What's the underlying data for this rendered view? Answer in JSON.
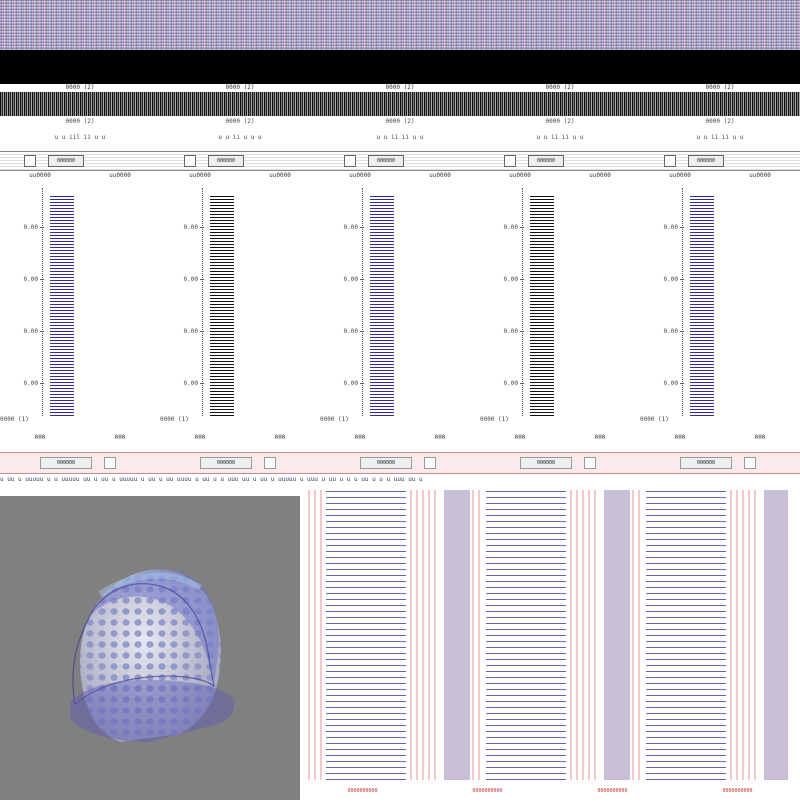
{
  "header": {
    "column_titles": [
      "0000 (2)",
      "0000 (2)",
      "0000 (2)",
      "0000 (2)",
      "0000 (2)"
    ],
    "column_subtitles": [
      "0000 (2)",
      "0000 (2)",
      "0000 (2)",
      "0000 (2)",
      "0000 (2)"
    ],
    "column_labels": [
      "u u iil ii u u",
      "u u ii u u u",
      "u u ii ii u u",
      "u u ii ii u u",
      "u u ii ii u u"
    ]
  },
  "toolbar": {
    "buttons": [
      "000000",
      "000000",
      "000000",
      "000000",
      "000000"
    ]
  },
  "series_labels": [
    "uu0000",
    "uu0000",
    "uu0000",
    "uu0000",
    "uu0000",
    "uu0000",
    "uu0000",
    "uu0000",
    "uu0000",
    "uu0000"
  ],
  "chart_data": {
    "type": "bar",
    "panels": [
      {
        "ticks": [
          "0.00",
          "0.00",
          "0.00",
          "0.00"
        ],
        "value": 1.0,
        "color": "#2a2a9e",
        "xlabel": "0000 (1)"
      },
      {
        "ticks": [
          "0.00",
          "0.00",
          "0.00",
          "0.00"
        ],
        "value": 1.0,
        "color": "#111111",
        "xlabel": "0000 (1)"
      },
      {
        "ticks": [
          "0.00",
          "0.00",
          "0.00",
          "0.00"
        ],
        "value": 1.0,
        "color": "#2a2a9e",
        "xlabel": "0000 (1)"
      },
      {
        "ticks": [
          "0.00",
          "0.00",
          "0.00",
          "0.00"
        ],
        "value": 1.0,
        "color": "#111111",
        "xlabel": "0000 (1)"
      },
      {
        "ticks": [
          "0.00",
          "0.00",
          "0.00",
          "0.00"
        ],
        "value": 1.0,
        "color": "#2a2a9e",
        "xlabel": "0000 (1)"
      }
    ]
  },
  "bottom_tabs": [
    "000",
    "000",
    "000",
    "000",
    "000",
    "000",
    "000",
    "000",
    "000",
    "000"
  ],
  "pink_toolbar": {
    "buttons": [
      "000000",
      "000000",
      "000000",
      "000000",
      "000000"
    ]
  },
  "status": {
    "text": "u uu u uuuuu u u uuuuu uu u uu u uuuuu u uu u uu uuuu u uu u u uuu uu u uu u uuuuu u uuu u uu u u u uu u u u uuu uu u"
  },
  "grid_footer": [
    "0000000000",
    "0000000000",
    "0000000000",
    "0000000000"
  ],
  "viewer": {
    "background": "#808080",
    "model_color": "#6f6fc8",
    "mesh_color": "#9aa2d8"
  }
}
